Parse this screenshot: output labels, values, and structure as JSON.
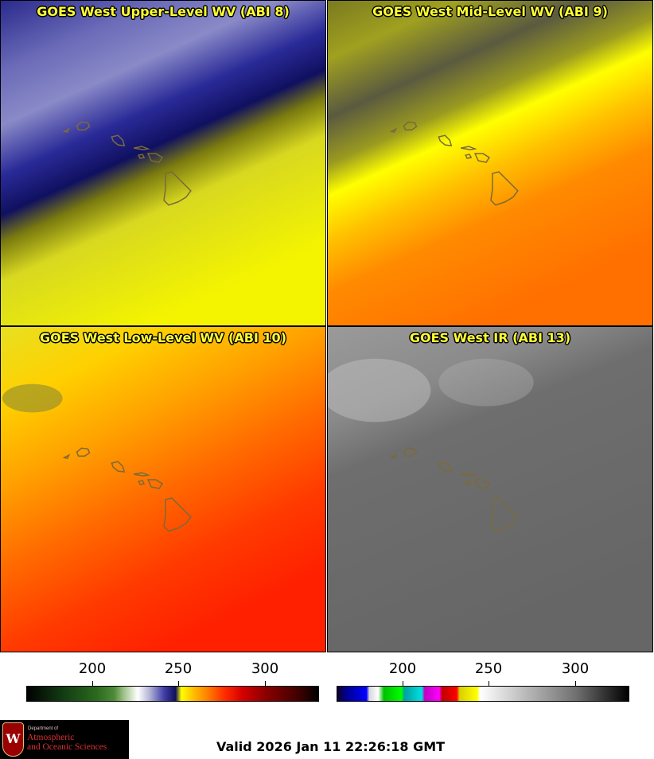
{
  "panels": [
    {
      "title": "GOES West Upper-Level WV (ABI 8)"
    },
    {
      "title": "GOES West Mid-Level WV (ABI 9)"
    },
    {
      "title": "GOES West Low-Level WV (ABI 10)"
    },
    {
      "title": "GOES West IR (ABI 13)"
    }
  ],
  "colorbars": [
    {
      "ticks": [
        "200",
        "250",
        "300"
      ]
    },
    {
      "ticks": [
        "200",
        "250",
        "300"
      ]
    }
  ],
  "logo": {
    "line1": "Department of",
    "line2": "Atmospheric",
    "line3": "and Oceanic Sciences",
    "crest_letter": "W"
  },
  "valid_time": "Valid 2026 Jan 11 22:26:18 GMT",
  "colors": {
    "title_text": "#ffff33",
    "island_outline": "#7a6a3a"
  }
}
